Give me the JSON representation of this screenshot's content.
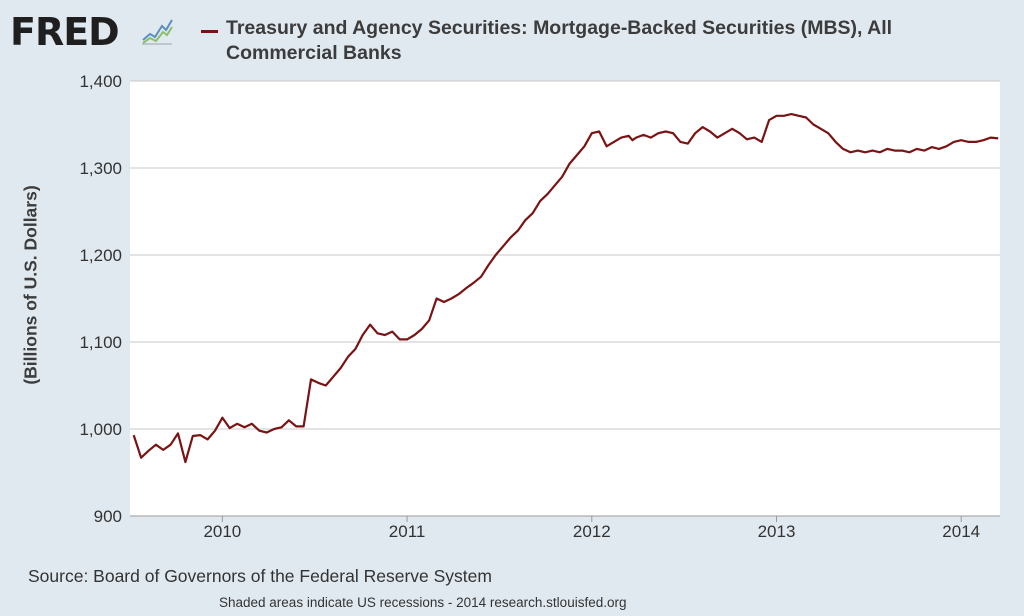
{
  "header": {
    "logo_text": "FRED",
    "logo_icon": "line-chart-icon"
  },
  "colors": {
    "background": "#e1e9f0",
    "plot_background": "#ffffff",
    "series_line": "#7a1414",
    "grid": "#c8c8c8"
  },
  "chart_data": {
    "type": "line",
    "title": "Treasury and Agency Securities: Mortgage-Backed Securities (MBS), All Commercial Banks",
    "title_lines": [
      "Treasury and Agency Securities: Mortgage-Backed Securities (MBS), All",
      "Commercial Banks"
    ],
    "xlabel": "",
    "ylabel": "(Billions of U.S. Dollars)",
    "y_ticks": [
      "900",
      "1,000",
      "1,100",
      "1,200",
      "1,300",
      "1,400"
    ],
    "x_ticks": [
      "2010",
      "2011",
      "2012",
      "2013",
      "2014"
    ],
    "ylim": [
      900,
      1400
    ],
    "xlim": [
      "2009-07",
      "2014-03"
    ],
    "grid": "horizontal",
    "legend_position": "top",
    "series": [
      {
        "name": "Treasury and Agency Securities: Mortgage-Backed Securities (MBS), All Commercial Banks",
        "x": [
          2009.52,
          2009.56,
          2009.6,
          2009.64,
          2009.68,
          2009.72,
          2009.76,
          2009.8,
          2009.84,
          2009.88,
          2009.92,
          2009.96,
          2010.0,
          2010.04,
          2010.08,
          2010.12,
          2010.16,
          2010.2,
          2010.24,
          2010.28,
          2010.32,
          2010.36,
          2010.4,
          2010.44,
          2010.48,
          2010.52,
          2010.56,
          2010.6,
          2010.64,
          2010.68,
          2010.72,
          2010.76,
          2010.8,
          2010.84,
          2010.88,
          2010.92,
          2010.96,
          2011.0,
          2011.04,
          2011.08,
          2011.12,
          2011.16,
          2011.2,
          2011.24,
          2011.28,
          2011.32,
          2011.36,
          2011.4,
          2011.44,
          2011.48,
          2011.52,
          2011.56,
          2011.6,
          2011.64,
          2011.68,
          2011.72,
          2011.76,
          2011.8,
          2011.84,
          2011.88,
          2011.92,
          2011.96,
          2012.0,
          2012.04,
          2012.08,
          2012.12,
          2012.16,
          2012.2,
          2012.22,
          2012.24,
          2012.28,
          2012.32,
          2012.36,
          2012.4,
          2012.44,
          2012.48,
          2012.52,
          2012.56,
          2012.6,
          2012.64,
          2012.68,
          2012.72,
          2012.76,
          2012.8,
          2012.84,
          2012.88,
          2012.92,
          2012.96,
          2013.0,
          2013.04,
          2013.08,
          2013.12,
          2013.16,
          2013.2,
          2013.24,
          2013.28,
          2013.32,
          2013.36,
          2013.4,
          2013.44,
          2013.48,
          2013.52,
          2013.56,
          2013.6,
          2013.64,
          2013.68,
          2013.72,
          2013.76,
          2013.8,
          2013.84,
          2013.88,
          2013.92,
          2013.96,
          2014.0,
          2014.04,
          2014.08,
          2014.12,
          2014.16,
          2014.2
        ],
        "values": [
          993,
          967,
          975,
          982,
          976,
          982,
          995,
          962,
          992,
          993,
          988,
          998,
          1013,
          1001,
          1006,
          1002,
          1006,
          998,
          996,
          1000,
          1002,
          1010,
          1003,
          1003,
          1057,
          1053,
          1050,
          1060,
          1070,
          1083,
          1092,
          1108,
          1120,
          1110,
          1108,
          1112,
          1103,
          1103,
          1108,
          1115,
          1125,
          1150,
          1146,
          1150,
          1155,
          1162,
          1168,
          1175,
          1188,
          1200,
          1210,
          1220,
          1228,
          1240,
          1248,
          1262,
          1270,
          1280,
          1290,
          1305,
          1315,
          1325,
          1340,
          1342,
          1325,
          1330,
          1335,
          1337,
          1332,
          1335,
          1338,
          1335,
          1340,
          1342,
          1340,
          1330,
          1328,
          1340,
          1347,
          1342,
          1335,
          1340,
          1345,
          1340,
          1333,
          1335,
          1330,
          1355,
          1360,
          1360,
          1362,
          1360,
          1358,
          1350,
          1345,
          1340,
          1330,
          1322,
          1318,
          1320,
          1318,
          1320,
          1318,
          1322,
          1320,
          1320,
          1318,
          1322,
          1320,
          1324,
          1322,
          1325,
          1330,
          1332,
          1330,
          1330,
          1332,
          1335,
          1334
        ]
      }
    ]
  },
  "source": "Source: Board of Governors of the Federal Reserve System",
  "footnote": "Shaded areas indicate US recessions - 2014 research.stlouisfed.org"
}
